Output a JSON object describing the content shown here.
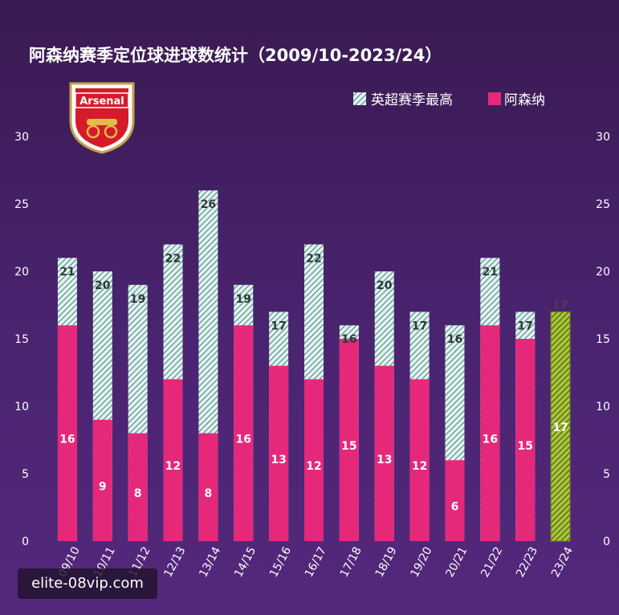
{
  "watermark": "elite-08vip.com",
  "chart_data": {
    "type": "bar",
    "stacked": true,
    "title": "阿森纳赛季定位球进球数统计（2009/10-2023/24）",
    "logo_text": "Arsenal",
    "categories": [
      "09/10",
      "10/11",
      "11/12",
      "12/13",
      "13/14",
      "14/15",
      "15/16",
      "16/17",
      "17/18",
      "18/19",
      "19/20",
      "20/21",
      "21/22",
      "22/23",
      "23/24"
    ],
    "series": [
      {
        "name": "阿森纳",
        "color": "#e5287a",
        "values": [
          16,
          9,
          8,
          12,
          8,
          16,
          13,
          12,
          15,
          13,
          12,
          6,
          16,
          15,
          17
        ]
      },
      {
        "name": "英超赛季最高",
        "color": "#7ec8b8",
        "values": [
          21,
          20,
          19,
          22,
          26,
          19,
          17,
          22,
          16,
          20,
          17,
          16,
          21,
          17,
          17
        ]
      }
    ],
    "highlight": {
      "category": "23/24",
      "color": "#8aa020"
    },
    "ylim": [
      0,
      30
    ],
    "yticks": [
      0,
      5,
      10,
      15,
      20,
      25,
      30
    ],
    "y2ticks": [
      0,
      5,
      10,
      15,
      20,
      25,
      30
    ],
    "legend_position": "top-right",
    "grid": false
  }
}
